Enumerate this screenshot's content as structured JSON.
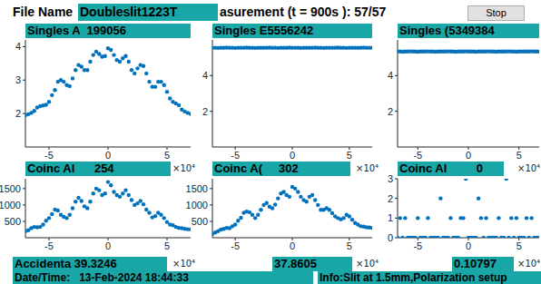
{
  "header": {
    "label": "File Name",
    "file_name": "Doubleslit1223T",
    "status": "asurement (t = 900s ): 57/57",
    "button": "Stop"
  },
  "chart_data": [
    {
      "type": "scatter",
      "title": "Singles A  199056",
      "x_label": "×10⁴",
      "color": "#0072bd",
      "marker": "o",
      "xlim": [
        -7,
        7
      ],
      "xticks": [
        -5,
        0,
        5
      ],
      "ylim": [
        1,
        4.2
      ],
      "yticks": [
        2,
        3,
        4
      ],
      "x": [
        -7,
        -6.75,
        -6.5,
        -6.25,
        -6,
        -5.75,
        -5.5,
        -5.25,
        -5,
        -4.75,
        -4.5,
        -4.25,
        -4,
        -3.75,
        -3.5,
        -3.25,
        -3,
        -2.75,
        -2.5,
        -2.25,
        -2,
        -1.75,
        -1.5,
        -1.25,
        -1,
        -0.75,
        -0.5,
        -0.25,
        0,
        0.25,
        0.5,
        0.75,
        1,
        1.25,
        1.5,
        1.75,
        2,
        2.25,
        2.5,
        2.75,
        3,
        3.25,
        3.5,
        3.75,
        4,
        4.25,
        4.5,
        4.75,
        5,
        5.25,
        5.5,
        5.75,
        6,
        6.25,
        6.5,
        6.75,
        7
      ],
      "values": [
        1.95,
        1.98,
        2.02,
        2.08,
        2.18,
        2.22,
        2.24,
        2.26,
        2.35,
        2.55,
        2.7,
        2.95,
        3.0,
        2.95,
        2.85,
        2.82,
        3.05,
        3.3,
        3.45,
        3.4,
        3.3,
        3.3,
        3.55,
        3.75,
        3.85,
        3.78,
        3.7,
        3.72,
        3.95,
        3.9,
        3.75,
        3.6,
        3.55,
        3.65,
        3.72,
        3.55,
        3.3,
        3.2,
        3.35,
        3.45,
        3.42,
        3.2,
        2.95,
        2.8,
        2.8,
        2.95,
        2.95,
        2.85,
        2.65,
        2.45,
        2.35,
        2.3,
        2.25,
        2.12,
        2.06,
        2.02,
        1.99
      ]
    },
    {
      "type": "scatter",
      "title": "Singles E5556242",
      "x_label": "×10⁴",
      "color": "#0072bd",
      "marker": "o",
      "xlim": [
        -7,
        7
      ],
      "xticks": [
        -5,
        0,
        5
      ],
      "ylim": [
        0,
        6
      ],
      "yticks": [
        2,
        4
      ],
      "x": [
        -7,
        -6.75,
        -6.5,
        -6.25,
        -6,
        -5.75,
        -5.5,
        -5.25,
        -5,
        -4.75,
        -4.5,
        -4.25,
        -4,
        -3.75,
        -3.5,
        -3.25,
        -3,
        -2.75,
        -2.5,
        -2.25,
        -2,
        -1.75,
        -1.5,
        -1.25,
        -1,
        -0.75,
        -0.5,
        -0.25,
        0,
        0.25,
        0.5,
        0.75,
        1,
        1.25,
        1.5,
        1.75,
        2,
        2.25,
        2.5,
        2.75,
        3,
        3.25,
        3.5,
        3.75,
        4,
        4.25,
        4.5,
        4.75,
        5,
        5.25,
        5.5,
        5.75,
        6,
        6.25,
        6.5,
        6.75,
        7
      ],
      "values": [
        5.56,
        5.56,
        5.55,
        5.56,
        5.56,
        5.57,
        5.56,
        5.56,
        5.55,
        5.56,
        5.56,
        5.56,
        5.57,
        5.56,
        5.56,
        5.55,
        5.56,
        5.56,
        5.56,
        5.56,
        5.57,
        5.56,
        5.56,
        5.55,
        5.56,
        5.56,
        5.56,
        5.57,
        5.56,
        5.56,
        5.56,
        5.55,
        5.56,
        5.56,
        5.56,
        5.56,
        5.57,
        5.56,
        5.56,
        5.55,
        5.56,
        5.56,
        5.56,
        5.56,
        5.57,
        5.56,
        5.56,
        5.55,
        5.56,
        5.56,
        5.56,
        5.56,
        5.56,
        5.57,
        5.56,
        5.56,
        5.56
      ]
    },
    {
      "type": "scatter",
      "title": "Singles (5349384",
      "x_label": "×10⁴",
      "color": "#0072bd",
      "marker": "o",
      "xlim": [
        -7,
        7
      ],
      "xticks": [
        -5,
        0,
        5
      ],
      "ylim": [
        0,
        6
      ],
      "yticks": [
        2,
        4
      ],
      "x": [
        -7,
        -6.75,
        -6.5,
        -6.25,
        -6,
        -5.75,
        -5.5,
        -5.25,
        -5,
        -4.75,
        -4.5,
        -4.25,
        -4,
        -3.75,
        -3.5,
        -3.25,
        -3,
        -2.75,
        -2.5,
        -2.25,
        -2,
        -1.75,
        -1.5,
        -1.25,
        -1,
        -0.75,
        -0.5,
        -0.25,
        0,
        0.25,
        0.5,
        0.75,
        1,
        1.25,
        1.5,
        1.75,
        2,
        2.25,
        2.5,
        2.75,
        3,
        3.25,
        3.5,
        3.75,
        4,
        4.25,
        4.5,
        4.75,
        5,
        5.25,
        5.5,
        5.75,
        6,
        6.25,
        6.5,
        6.75,
        7
      ],
      "values": [
        5.35,
        5.35,
        5.34,
        5.35,
        5.35,
        5.36,
        5.35,
        5.35,
        5.34,
        5.35,
        5.35,
        5.35,
        5.36,
        5.35,
        5.35,
        5.34,
        5.35,
        5.35,
        5.35,
        5.35,
        5.36,
        5.35,
        5.35,
        5.34,
        5.35,
        5.35,
        5.35,
        5.36,
        5.35,
        5.35,
        5.35,
        5.34,
        5.35,
        5.35,
        5.35,
        5.35,
        5.36,
        5.35,
        5.35,
        5.34,
        5.35,
        5.35,
        5.35,
        5.35,
        5.36,
        5.35,
        5.35,
        5.34,
        5.35,
        5.35,
        5.35,
        5.35,
        5.35,
        5.36,
        5.35,
        5.35,
        5.35
      ]
    },
    {
      "type": "scatter",
      "title": "Coinc Al      254",
      "x_label": "×10⁴",
      "color": "#0072bd",
      "marker": "o",
      "xlim": [
        -7,
        7
      ],
      "xticks": [
        -5,
        0,
        5
      ],
      "ylim": [
        0,
        1800
      ],
      "yticks": [
        500,
        1000,
        1500
      ],
      "x": [
        -7,
        -6.75,
        -6.5,
        -6.25,
        -6,
        -5.75,
        -5.5,
        -5.25,
        -5,
        -4.75,
        -4.5,
        -4.25,
        -4,
        -3.75,
        -3.5,
        -3.25,
        -3,
        -2.75,
        -2.5,
        -2.25,
        -2,
        -1.75,
        -1.5,
        -1.25,
        -1,
        -0.75,
        -0.5,
        -0.25,
        0,
        0.25,
        0.5,
        0.75,
        1,
        1.25,
        1.5,
        1.75,
        2,
        2.25,
        2.5,
        2.75,
        3,
        3.25,
        3.5,
        3.75,
        4,
        4.25,
        4.5,
        4.75,
        5,
        5.25,
        5.5,
        5.75,
        6,
        6.25,
        6.5,
        6.75,
        7
      ],
      "values": [
        200,
        230,
        290,
        330,
        320,
        330,
        400,
        520,
        600,
        720,
        860,
        830,
        700,
        640,
        600,
        700,
        900,
        1100,
        1220,
        1120,
        960,
        900,
        1100,
        1350,
        1500,
        1450,
        1300,
        1350,
        1700,
        1600,
        1400,
        1300,
        1250,
        1350,
        1450,
        1300,
        1150,
        1000,
        1050,
        1120,
        1020,
        860,
        760,
        620,
        660,
        760,
        700,
        600,
        480,
        400,
        380,
        330,
        300,
        290,
        270,
        260,
        254
      ]
    },
    {
      "type": "scatter",
      "title": "Coinc A(     302",
      "x_label": "×10⁴",
      "color": "#0072bd",
      "marker": "o",
      "xlim": [
        -7,
        7
      ],
      "xticks": [
        -5,
        0,
        5
      ],
      "ylim": [
        0,
        1800
      ],
      "yticks": [
        500,
        1000,
        1500
      ],
      "x": [
        -7,
        -6.75,
        -6.5,
        -6.25,
        -6,
        -5.75,
        -5.5,
        -5.25,
        -5,
        -4.75,
        -4.5,
        -4.25,
        -4,
        -3.75,
        -3.5,
        -3.25,
        -3,
        -2.75,
        -2.5,
        -2.25,
        -2,
        -1.75,
        -1.5,
        -1.25,
        -1,
        -0.75,
        -0.5,
        -0.25,
        0,
        0.25,
        0.5,
        0.75,
        1,
        1.25,
        1.5,
        1.75,
        2,
        2.25,
        2.5,
        2.75,
        3,
        3.25,
        3.5,
        3.75,
        4,
        4.25,
        4.5,
        4.75,
        5,
        5.25,
        5.5,
        5.75,
        6,
        6.25,
        6.5,
        6.75,
        7
      ],
      "values": [
        120,
        160,
        200,
        250,
        270,
        300,
        290,
        350,
        400,
        520,
        610,
        760,
        800,
        780,
        700,
        600,
        700,
        850,
        1000,
        1060,
        950,
        900,
        1010,
        1200,
        1350,
        1400,
        1300,
        1250,
        1550,
        1500,
        1400,
        1250,
        1150,
        1100,
        1250,
        1300,
        1150,
        1000,
        850,
        850,
        900,
        850,
        750,
        650,
        600,
        560,
        600,
        700,
        650,
        550,
        450,
        400,
        350,
        340,
        320,
        310,
        302
      ]
    },
    {
      "type": "scatter",
      "title": "Coinc Al         0",
      "x_label": "×10⁴",
      "color": "#0072bd",
      "marker": "o",
      "xlim": [
        -7,
        7
      ],
      "xticks": [
        -5,
        0,
        5
      ],
      "ylim": [
        0,
        3
      ],
      "yticks": [
        0,
        1,
        2,
        3
      ],
      "x": [
        -7,
        -6.75,
        -6.5,
        -6.25,
        -6,
        -5.75,
        -5.5,
        -5.25,
        -5,
        -4.75,
        -4.5,
        -4.25,
        -4,
        -3.75,
        -3.5,
        -3.25,
        -3,
        -2.75,
        -2.5,
        -2.25,
        -2,
        -1.75,
        -1.5,
        -1.25,
        -1,
        -0.75,
        -0.5,
        -0.25,
        0,
        0.25,
        0.5,
        0.75,
        1,
        1.25,
        1.5,
        1.75,
        2,
        2.25,
        2.5,
        2.75,
        3,
        3.25,
        3.5,
        3.75,
        4,
        4.25,
        4.5,
        4.75,
        5,
        5.25,
        5.5,
        5.75,
        6,
        6.25,
        6.5,
        6.75,
        7
      ],
      "values": [
        0,
        1,
        0,
        1,
        0,
        0,
        0,
        0,
        1,
        0,
        0,
        0,
        1,
        0,
        0,
        0,
        0,
        2,
        0,
        0,
        0,
        1,
        0,
        0,
        0,
        1,
        1,
        3,
        0,
        0,
        0,
        0,
        2,
        1,
        0,
        1,
        0,
        0,
        0,
        0,
        1,
        0,
        0,
        3,
        0,
        1,
        0,
        1,
        0,
        0,
        0,
        1,
        0,
        1,
        0,
        0,
        0
      ]
    }
  ],
  "footer": {
    "accidentals": [
      "Accidenta 39.3246",
      "37.8605",
      "0.10797"
    ],
    "date_time": "Date/Time:   13-Feb-2024 18:44:33",
    "info": "Info:Slit at 1.5mm,Polarization setup"
  }
}
